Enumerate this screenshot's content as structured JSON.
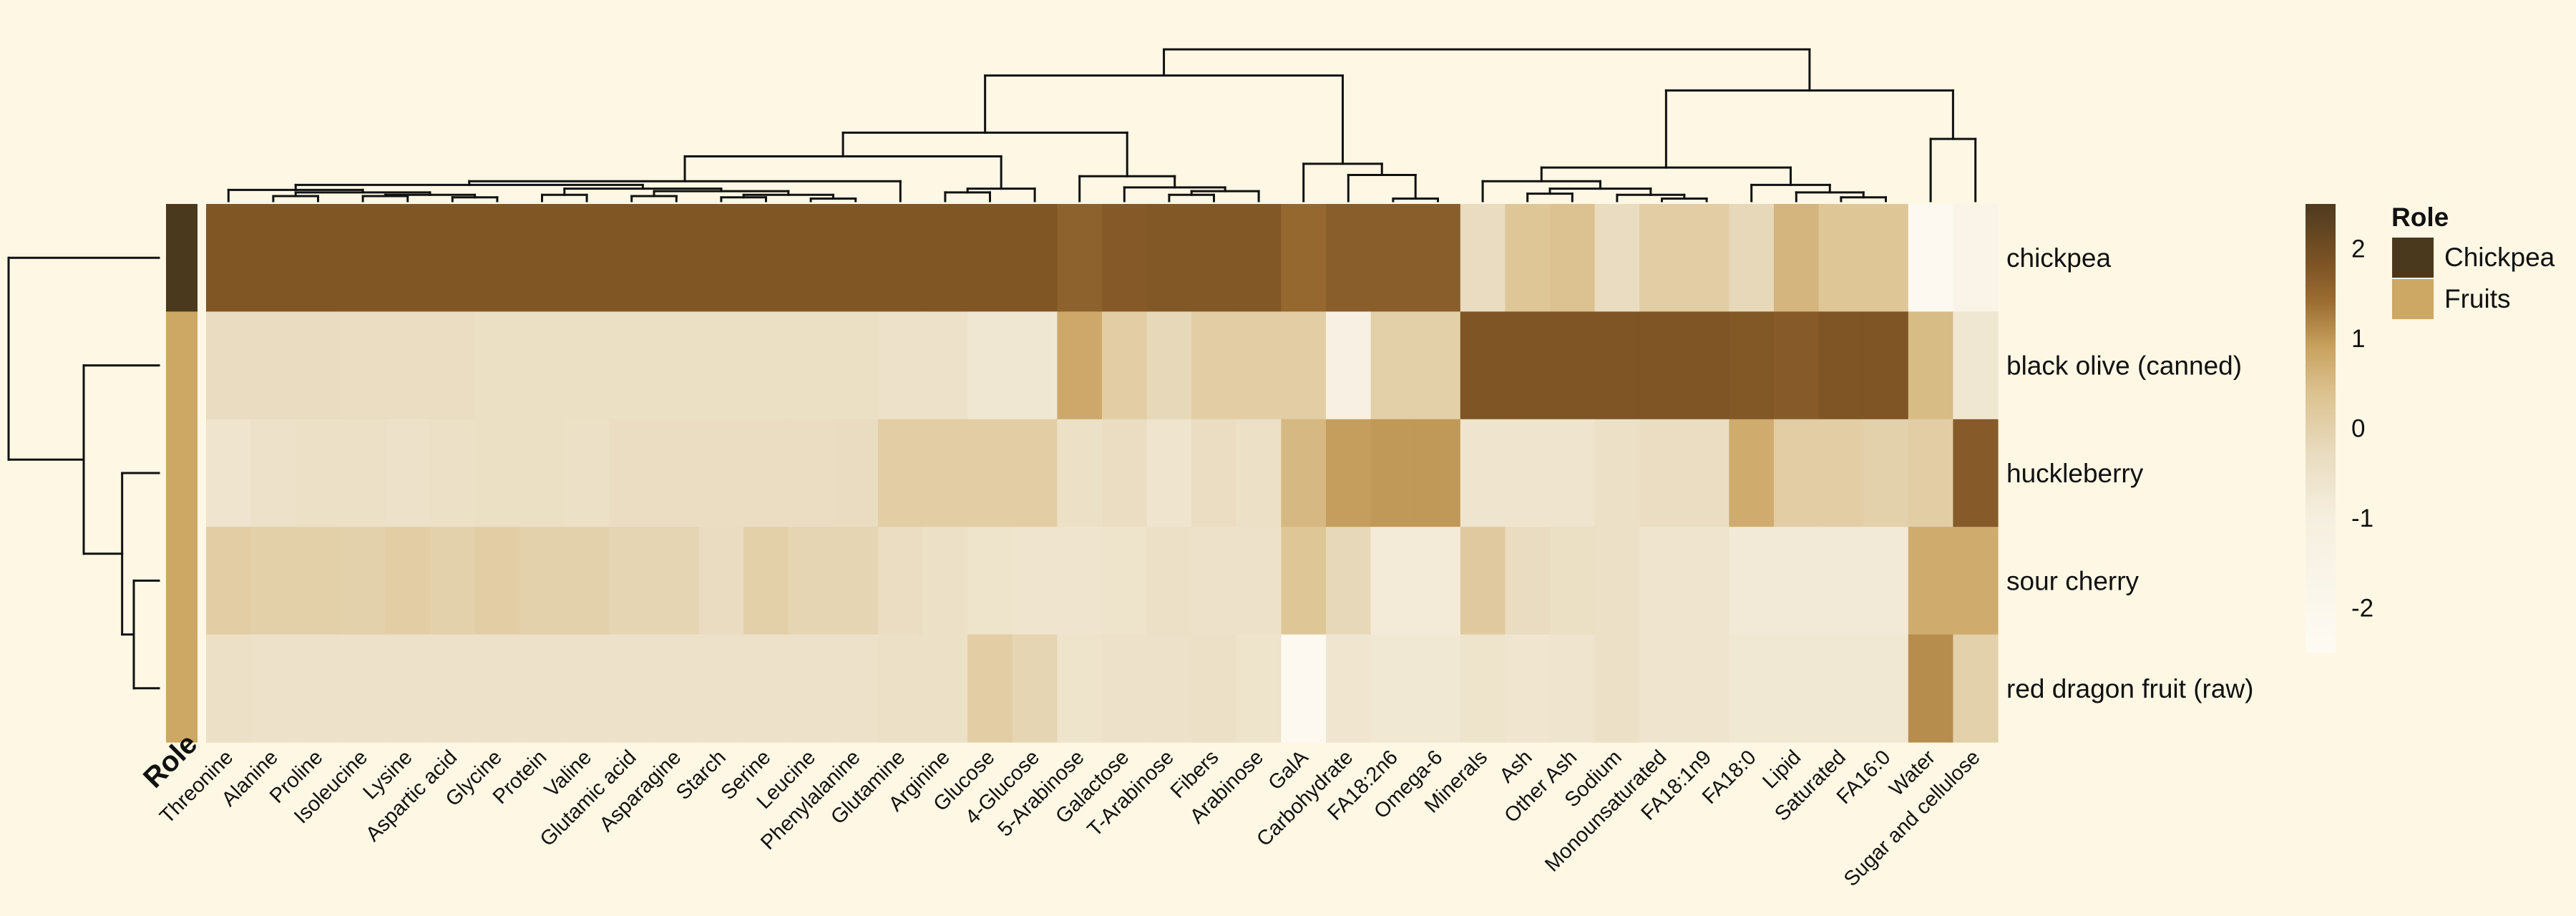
{
  "chart_data": {
    "type": "heatmap",
    "title": "",
    "rows": [
      "chickpea",
      "black olive (canned)",
      "huckleberry",
      "sour cherry",
      "red dragon fruit (raw)"
    ],
    "columns": [
      "Threonine",
      "Alanine",
      "Proline",
      "Isoleucine",
      "Lysine",
      "Aspartic acid",
      "Glycine",
      "Protein",
      "Valine",
      "Glutamic acid",
      "Asparagine",
      "Starch",
      "Serine",
      "Leucine",
      "Phenylalanine",
      "Glutamine",
      "Arginine",
      "Glucose",
      "4-Glucose",
      "5-Arabinose",
      "Galactose",
      "T-Arabinose",
      "Fibers",
      "Arabinose",
      "GalA",
      "Carbohydrate",
      "FA18:2n6",
      "Omega-6",
      "Minerals",
      "Ash",
      "Other Ash",
      "Sodium",
      "Monounsaturated",
      "FA18:1n9",
      "FA18:0",
      "Lipid",
      "Saturated",
      "FA16:0",
      "Water",
      "Sugar and cellulose"
    ],
    "values": [
      [
        1.79,
        1.79,
        1.79,
        1.79,
        1.79,
        1.79,
        1.79,
        1.79,
        1.79,
        1.79,
        1.79,
        1.79,
        1.79,
        1.79,
        1.79,
        1.79,
        1.79,
        1.79,
        1.79,
        1.6,
        1.72,
        1.75,
        1.75,
        1.75,
        1.5,
        1.65,
        1.65,
        1.65,
        -0.3,
        0.3,
        0.4,
        -0.3,
        0.1,
        0.1,
        -0.2,
        0.6,
        0.3,
        0.3,
        -2.3,
        -1.6
      ],
      [
        -0.3,
        -0.3,
        -0.3,
        -0.35,
        -0.35,
        -0.35,
        -0.4,
        -0.4,
        -0.4,
        -0.4,
        -0.4,
        -0.4,
        -0.4,
        -0.4,
        -0.4,
        -0.5,
        -0.5,
        -0.7,
        -0.7,
        0.8,
        0.1,
        -0.2,
        0.1,
        0.1,
        0.1,
        -1.3,
        0.05,
        0.05,
        1.8,
        1.8,
        1.8,
        1.8,
        1.8,
        1.8,
        1.75,
        1.7,
        1.8,
        1.8,
        0.5,
        -0.7
      ],
      [
        -0.6,
        -0.5,
        -0.45,
        -0.45,
        -0.5,
        -0.45,
        -0.4,
        -0.4,
        -0.45,
        -0.35,
        -0.35,
        -0.35,
        -0.35,
        -0.35,
        -0.3,
        0.1,
        0.1,
        0.1,
        0.1,
        -0.45,
        -0.35,
        -0.6,
        -0.35,
        -0.45,
        0.55,
        0.95,
        1.0,
        1.0,
        -0.6,
        -0.6,
        -0.6,
        -0.45,
        -0.35,
        -0.35,
        0.75,
        0.1,
        0.1,
        0.0,
        0.1,
        1.7
      ],
      [
        0.1,
        0.05,
        0.05,
        0.0,
        0.1,
        0.0,
        0.1,
        0.0,
        0.0,
        -0.1,
        -0.1,
        -0.3,
        0.05,
        -0.1,
        -0.1,
        -0.35,
        -0.45,
        -0.55,
        -0.6,
        -0.6,
        -0.55,
        -0.45,
        -0.5,
        -0.5,
        0.3,
        -0.2,
        -0.85,
        -0.85,
        0.2,
        -0.3,
        -0.4,
        -0.45,
        -0.6,
        -0.6,
        -0.8,
        -0.8,
        -0.8,
        -0.8,
        0.75,
        0.75
      ],
      [
        -0.45,
        -0.5,
        -0.5,
        -0.5,
        -0.5,
        -0.5,
        -0.5,
        -0.5,
        -0.5,
        -0.5,
        -0.5,
        -0.5,
        -0.5,
        -0.5,
        -0.5,
        -0.45,
        -0.45,
        0.1,
        -0.1,
        -0.55,
        -0.5,
        -0.5,
        -0.45,
        -0.55,
        -2.3,
        -0.65,
        -0.75,
        -0.75,
        -0.55,
        -0.65,
        -0.6,
        -0.45,
        -0.6,
        -0.6,
        -0.75,
        -0.75,
        -0.75,
        -0.75,
        1.1,
        0.0
      ]
    ],
    "colorbar": {
      "ticks": [
        2,
        1,
        0,
        -1,
        -2
      ],
      "range": [
        -2.5,
        2.5
      ],
      "stops": [
        {
          "v": -2.5,
          "c": "#fefbf4"
        },
        {
          "v": -1.0,
          "c": "#f6efdf"
        },
        {
          "v": -0.3,
          "c": "#e9dcc0"
        },
        {
          "v": 0.4,
          "c": "#dcc290"
        },
        {
          "v": 0.9,
          "c": "#c9a260"
        },
        {
          "v": 1.4,
          "c": "#9c6e33"
        },
        {
          "v": 1.8,
          "c": "#7f5525"
        },
        {
          "v": 2.5,
          "c": "#4e3a1e"
        }
      ]
    },
    "annotation": {
      "title": "Role",
      "row_roles": [
        "Chickpea",
        "Fruits",
        "Fruits",
        "Fruits",
        "Fruits"
      ],
      "legend": [
        {
          "label": "Chickpea",
          "color": "#4a391d"
        },
        {
          "label": "Fruits",
          "color": "#cda764"
        }
      ]
    },
    "row_dendrogram": {
      "merges": [
        [
          3,
          4,
          0.15
        ],
        [
          2,
          5,
          0.22
        ],
        [
          1,
          6,
          0.45
        ],
        [
          0,
          7,
          0.9
        ]
      ],
      "max_height": 0.9
    },
    "column_dendrogram": {
      "merges": [
        [
          35,
          36,
          0.12
        ],
        [
          36,
          37,
          0.05
        ],
        [
          37,
          38,
          0.05
        ],
        [
          38,
          39,
          0.02
        ],
        [
          39,
          40,
          0.03
        ],
        [
          41,
          42,
          0.04
        ],
        [
          43,
          44,
          0.08
        ],
        [
          45,
          46,
          0.11
        ],
        [
          47,
          48,
          0.15
        ],
        [
          49,
          50,
          0.2
        ],
        [
          51,
          52,
          0.3
        ],
        [
          53,
          54,
          0.34
        ],
        [
          55,
          56,
          0.38
        ],
        [
          57,
          58,
          0.42
        ],
        [
          59,
          60,
          0.55
        ],
        [
          61,
          62,
          1.22
        ],
        [
          21,
          22,
          0.07
        ],
        [
          63,
          23,
          0.1
        ],
        [
          20,
          64,
          0.12
        ],
        [
          65,
          19,
          0.2
        ],
        [
          66,
          24,
          0.35
        ],
        [
          17,
          18,
          0.1
        ],
        [
          68,
          16,
          0.12
        ],
        [
          67,
          69,
          0.78
        ],
        [
          34,
          33,
          0.03
        ],
        [
          71,
          32,
          0.05
        ],
        [
          31,
          30,
          0.08
        ],
        [
          72,
          73,
          0.1
        ],
        [
          29,
          74,
          0.13
        ],
        [
          28,
          75,
          0.18
        ],
        [
          26,
          27,
          0.06
        ],
        [
          25,
          77,
          0.18
        ],
        [
          36,
          35,
          0.12
        ],
        [
          78,
          79,
          0.25
        ],
        [
          76,
          80,
          0.4
        ],
        [
          38,
          37,
          0.05
        ],
        [
          81,
          82,
          0.53
        ],
        [
          39,
          40,
          0.6
        ]
      ]
    }
  }
}
